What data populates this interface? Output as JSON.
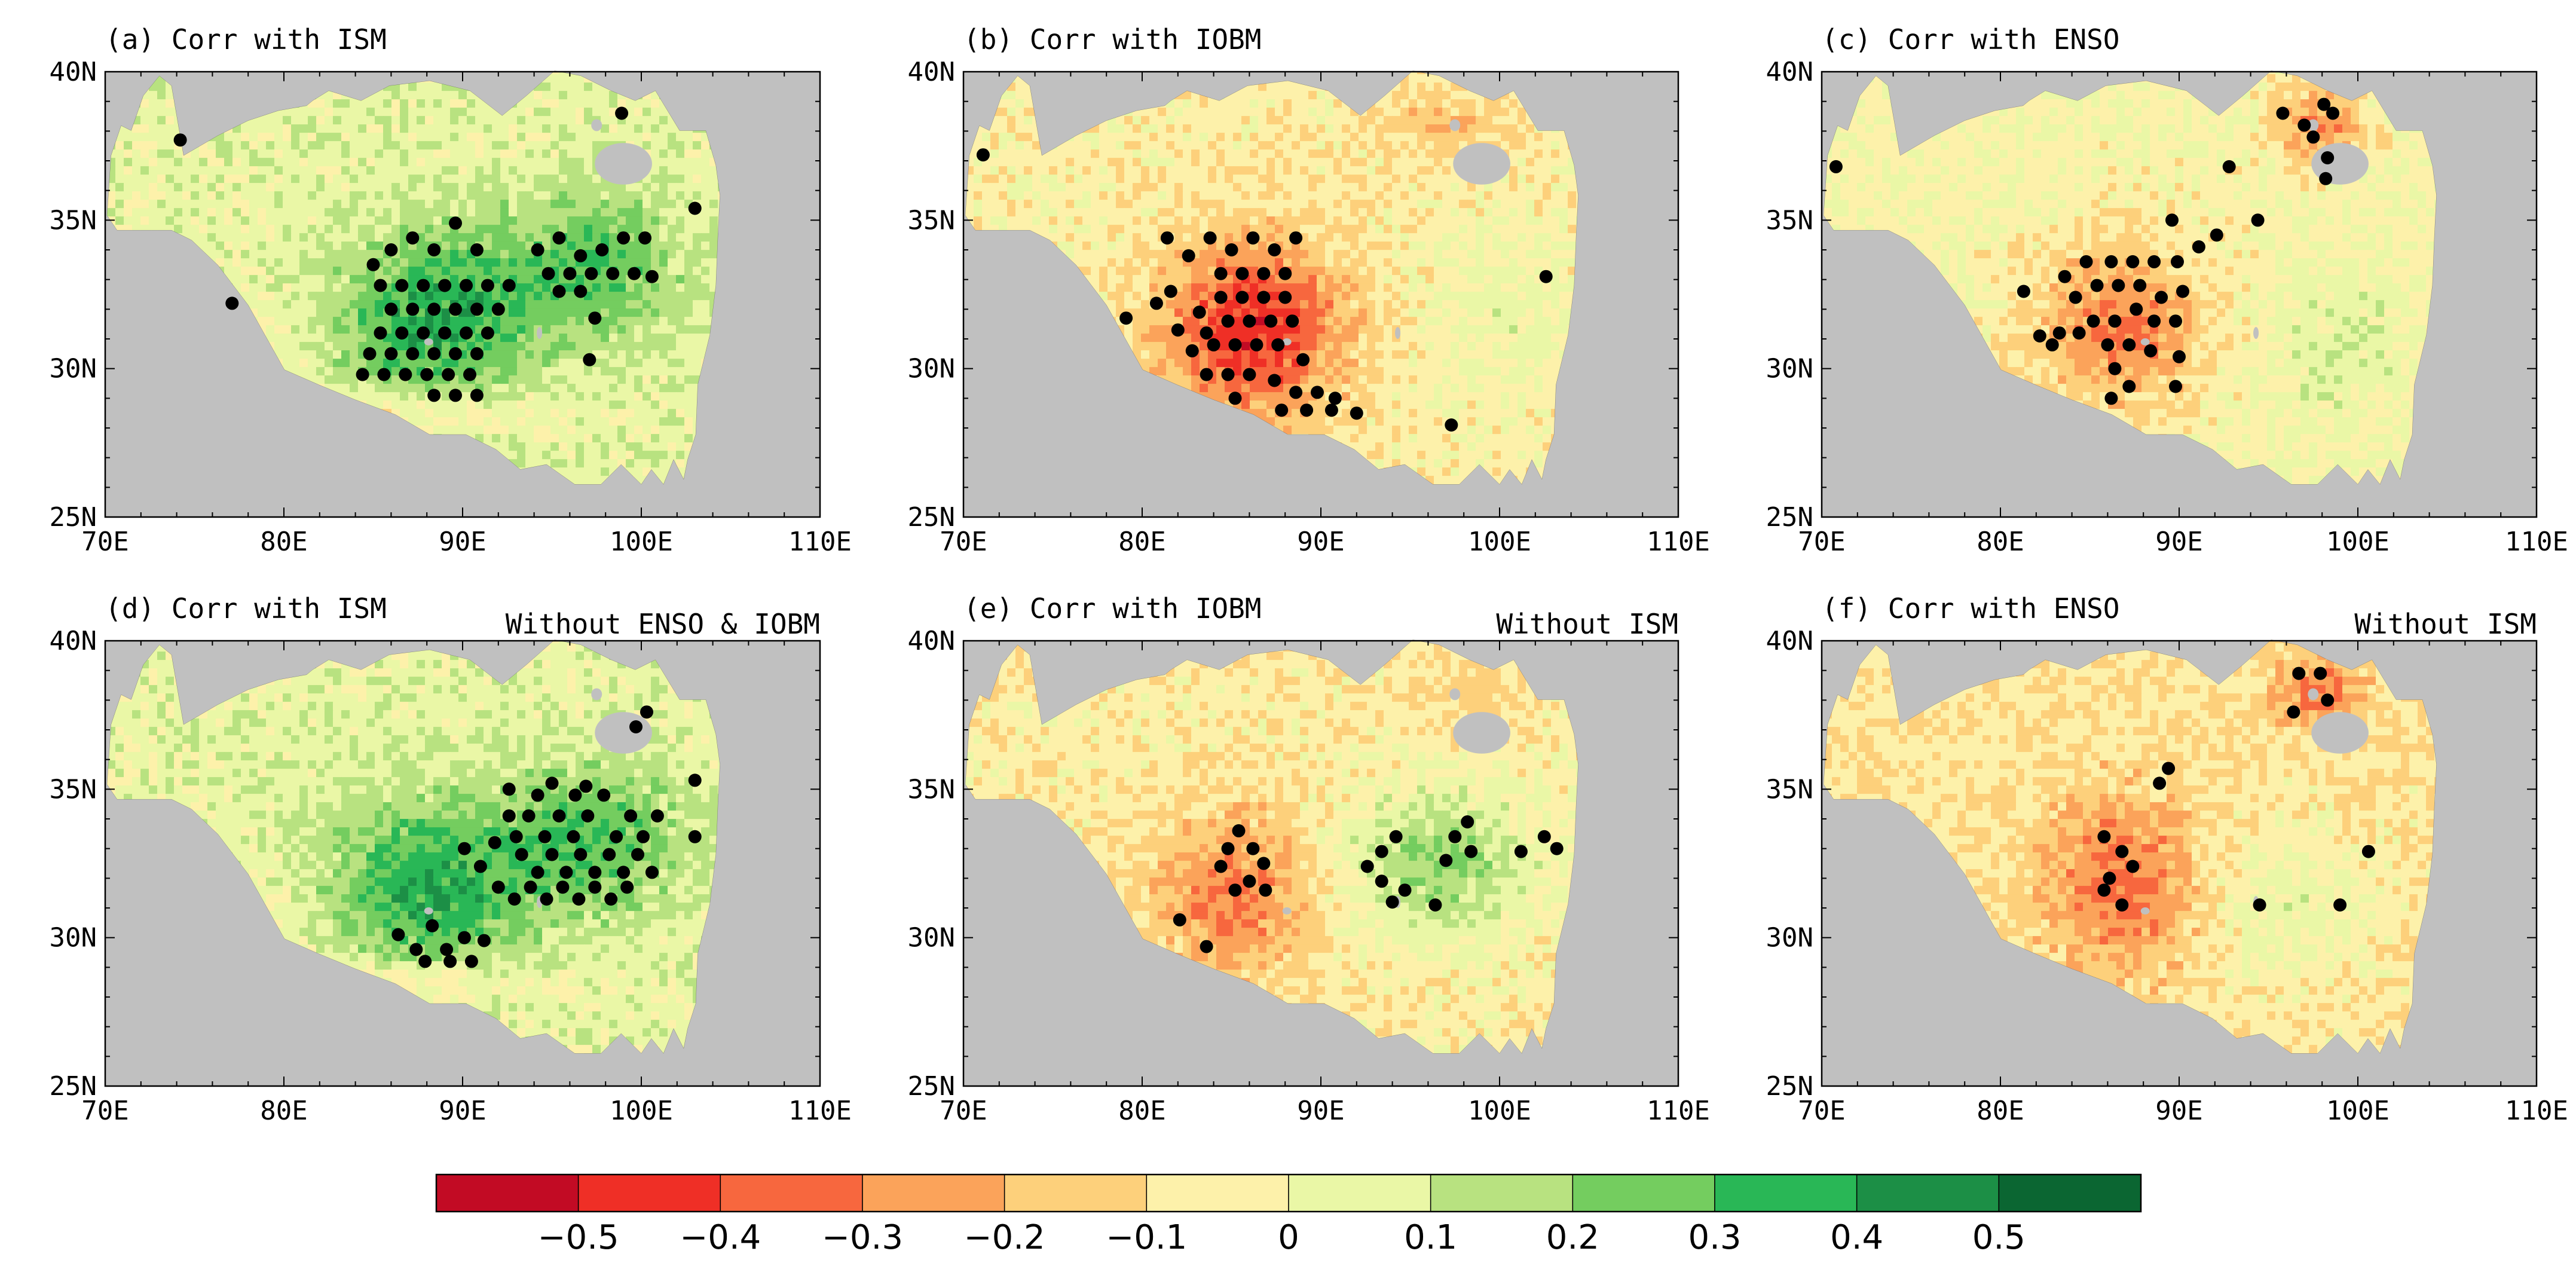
{
  "chart_data": {
    "type": "map",
    "description_x_axis": "longitude",
    "description_y_axis": "latitude",
    "x_range": [
      70,
      110
    ],
    "y_range": [
      25,
      40
    ],
    "x_ticks": [
      "70E",
      "80E",
      "90E",
      "100E",
      "110E"
    ],
    "y_ticks": [
      "40N",
      "35N",
      "30N",
      "25N"
    ],
    "panels": [
      {
        "id": "a",
        "title": "(a) Corr with ISM",
        "subtitle": "",
        "pattern": "ism",
        "dots": [
          [
            74.2,
            37.7
          ],
          [
            77.1,
            32.2
          ],
          [
            85,
            33.5
          ],
          [
            86,
            34
          ],
          [
            87.2,
            34.4
          ],
          [
            88.4,
            34
          ],
          [
            89.6,
            34.9
          ],
          [
            90.8,
            34
          ],
          [
            85.4,
            32.8
          ],
          [
            86.6,
            32.8
          ],
          [
            87.8,
            32.8
          ],
          [
            89,
            32.8
          ],
          [
            90.2,
            32.8
          ],
          [
            91.4,
            32.8
          ],
          [
            92.6,
            32.8
          ],
          [
            86,
            32
          ],
          [
            87.2,
            32
          ],
          [
            88.4,
            32
          ],
          [
            89.6,
            32
          ],
          [
            90.8,
            32
          ],
          [
            92,
            32
          ],
          [
            85.4,
            31.2
          ],
          [
            86.6,
            31.2
          ],
          [
            87.8,
            31.2
          ],
          [
            89,
            31.2
          ],
          [
            90.2,
            31.2
          ],
          [
            91.4,
            31.2
          ],
          [
            84.8,
            30.5
          ],
          [
            86,
            30.5
          ],
          [
            87.2,
            30.5
          ],
          [
            88.4,
            30.5
          ],
          [
            89.6,
            30.5
          ],
          [
            90.8,
            30.5
          ],
          [
            84.4,
            29.8
          ],
          [
            85.6,
            29.8
          ],
          [
            86.8,
            29.8
          ],
          [
            88,
            29.8
          ],
          [
            89.2,
            29.8
          ],
          [
            90.4,
            29.8
          ],
          [
            88.4,
            29.1
          ],
          [
            89.6,
            29.1
          ],
          [
            90.8,
            29.1
          ],
          [
            94.2,
            34
          ],
          [
            95.4,
            34.4
          ],
          [
            96.6,
            33.8
          ],
          [
            97.8,
            34
          ],
          [
            99,
            34.4
          ],
          [
            100.2,
            34.4
          ],
          [
            94.8,
            33.2
          ],
          [
            96,
            33.2
          ],
          [
            97.2,
            33.2
          ],
          [
            98.4,
            33.2
          ],
          [
            99.6,
            33.2
          ],
          [
            100.6,
            33.1
          ],
          [
            95.4,
            32.6
          ],
          [
            96.6,
            32.6
          ],
          [
            97.4,
            31.7
          ],
          [
            97.1,
            30.3
          ],
          [
            98.9,
            38.6
          ],
          [
            103,
            35.4
          ]
        ]
      },
      {
        "id": "b",
        "title": "(b) Corr with IOBM",
        "subtitle": "",
        "pattern": "iobm",
        "dots": [
          [
            71.1,
            37.2
          ],
          [
            79.1,
            31.7
          ],
          [
            81.4,
            34.4
          ],
          [
            80.8,
            32.2
          ],
          [
            81.6,
            32.6
          ],
          [
            82.6,
            33.8
          ],
          [
            83.8,
            34.4
          ],
          [
            85,
            34
          ],
          [
            86.2,
            34.4
          ],
          [
            87.4,
            34
          ],
          [
            88.6,
            34.4
          ],
          [
            84.4,
            33.2
          ],
          [
            85.6,
            33.2
          ],
          [
            86.8,
            33.2
          ],
          [
            88,
            33.2
          ],
          [
            82,
            31.3
          ],
          [
            83.2,
            31.9
          ],
          [
            84.4,
            32.4
          ],
          [
            85.6,
            32.4
          ],
          [
            86.8,
            32.4
          ],
          [
            88,
            32.4
          ],
          [
            83.6,
            31.2
          ],
          [
            84.8,
            31.6
          ],
          [
            86,
            31.6
          ],
          [
            87.2,
            31.6
          ],
          [
            88.4,
            31.6
          ],
          [
            82.8,
            30.6
          ],
          [
            84,
            30.8
          ],
          [
            85.2,
            30.8
          ],
          [
            86.4,
            30.8
          ],
          [
            87.6,
            30.8
          ],
          [
            89,
            30.3
          ],
          [
            83.6,
            29.8
          ],
          [
            84.8,
            29.8
          ],
          [
            86,
            29.8
          ],
          [
            87.4,
            29.6
          ],
          [
            88.6,
            29.2
          ],
          [
            89.8,
            29.2
          ],
          [
            90.8,
            29
          ],
          [
            85.2,
            29
          ],
          [
            87.8,
            28.6
          ],
          [
            89.2,
            28.6
          ],
          [
            90.6,
            28.6
          ],
          [
            92,
            28.5
          ],
          [
            97.3,
            28.1
          ],
          [
            102.6,
            33.1
          ]
        ]
      },
      {
        "id": "c",
        "title": "(c) Corr with ENSO",
        "subtitle": "",
        "pattern": "enso",
        "dots": [
          [
            70.8,
            36.8
          ],
          [
            95.8,
            38.6
          ],
          [
            97,
            38.2
          ],
          [
            98.1,
            38.9
          ],
          [
            98.6,
            38.6
          ],
          [
            97.5,
            37.8
          ],
          [
            98.3,
            37.1
          ],
          [
            98.2,
            36.4
          ],
          [
            92.8,
            36.8
          ],
          [
            94.4,
            35
          ],
          [
            92.1,
            34.5
          ],
          [
            89.6,
            35
          ],
          [
            91.1,
            34.1
          ],
          [
            88.6,
            33.6
          ],
          [
            89.9,
            33.6
          ],
          [
            86.2,
            33.6
          ],
          [
            87.4,
            33.6
          ],
          [
            84.8,
            33.6
          ],
          [
            83.6,
            33.1
          ],
          [
            85.4,
            32.8
          ],
          [
            86.6,
            32.8
          ],
          [
            87.8,
            32.8
          ],
          [
            89,
            32.4
          ],
          [
            90.2,
            32.6
          ],
          [
            81.3,
            32.6
          ],
          [
            84.2,
            32.4
          ],
          [
            85.2,
            31.6
          ],
          [
            86.4,
            31.6
          ],
          [
            87.6,
            32
          ],
          [
            88.6,
            31.6
          ],
          [
            89.8,
            31.6
          ],
          [
            82.2,
            31.1
          ],
          [
            83.3,
            31.2
          ],
          [
            84.4,
            31.2
          ],
          [
            86,
            30.8
          ],
          [
            87.2,
            30.8
          ],
          [
            88.4,
            30.6
          ],
          [
            82.9,
            30.8
          ],
          [
            86.4,
            30
          ],
          [
            87.2,
            29.4
          ],
          [
            86.2,
            29
          ],
          [
            89.8,
            29.4
          ],
          [
            90,
            30.4
          ]
        ]
      },
      {
        "id": "d",
        "title": "(d) Corr with ISM",
        "subtitle": "Without ENSO & IOBM",
        "pattern": "ism",
        "dots": [
          [
            86.4,
            30.1
          ],
          [
            87.4,
            29.6
          ],
          [
            88.3,
            30.4
          ],
          [
            89.1,
            29.6
          ],
          [
            90.1,
            30
          ],
          [
            87.9,
            29.2
          ],
          [
            89.3,
            29.2
          ],
          [
            90.5,
            29.2
          ],
          [
            91.2,
            29.9
          ],
          [
            90.1,
            33
          ],
          [
            91,
            32.4
          ],
          [
            91.8,
            33.2
          ],
          [
            92.6,
            34.1
          ],
          [
            93,
            33.4
          ],
          [
            93.7,
            34.1
          ],
          [
            94.6,
            33.4
          ],
          [
            95.4,
            34.1
          ],
          [
            96.3,
            34.8
          ],
          [
            96.2,
            33.4
          ],
          [
            97,
            34.1
          ],
          [
            97.9,
            34.8
          ],
          [
            98.6,
            33.4
          ],
          [
            99.4,
            34.1
          ],
          [
            100.1,
            33.4
          ],
          [
            100.9,
            34.1
          ],
          [
            93.3,
            32.8
          ],
          [
            94.2,
            32.2
          ],
          [
            95,
            32.8
          ],
          [
            95.8,
            32.2
          ],
          [
            96.6,
            32.8
          ],
          [
            97.4,
            32.2
          ],
          [
            98.2,
            32.8
          ],
          [
            99,
            32.2
          ],
          [
            99.8,
            32.8
          ],
          [
            100.6,
            32.2
          ],
          [
            92,
            31.7
          ],
          [
            92.9,
            31.3
          ],
          [
            93.8,
            31.7
          ],
          [
            94.7,
            31.3
          ],
          [
            95.6,
            31.7
          ],
          [
            96.5,
            31.3
          ],
          [
            97.4,
            31.7
          ],
          [
            98.3,
            31.3
          ],
          [
            99.2,
            31.7
          ],
          [
            99.7,
            37.1
          ],
          [
            100.3,
            37.6
          ],
          [
            103,
            35.3
          ],
          [
            103,
            33.4
          ],
          [
            94.2,
            34.8
          ],
          [
            95,
            35.2
          ],
          [
            92.6,
            35
          ],
          [
            96.9,
            35.1
          ]
        ]
      },
      {
        "id": "e",
        "title": "(e) Corr with IOBM",
        "subtitle": "Without ISM",
        "pattern": "iobm2",
        "dots": [
          [
            84.4,
            32.4
          ],
          [
            84.8,
            33
          ],
          [
            85.4,
            33.6
          ],
          [
            86.2,
            33
          ],
          [
            86.8,
            32.5
          ],
          [
            85.2,
            31.6
          ],
          [
            86,
            31.9
          ],
          [
            86.9,
            31.6
          ],
          [
            82.1,
            30.6
          ],
          [
            83.6,
            29.7
          ],
          [
            92.6,
            32.4
          ],
          [
            93.4,
            32.9
          ],
          [
            94.2,
            33.4
          ],
          [
            93.4,
            31.9
          ],
          [
            94,
            31.2
          ],
          [
            94.7,
            31.6
          ],
          [
            96.4,
            31.1
          ],
          [
            97.5,
            33.4
          ],
          [
            98.2,
            33.9
          ],
          [
            98.4,
            32.9
          ],
          [
            101.2,
            32.9
          ],
          [
            102.5,
            33.4
          ],
          [
            103.2,
            33
          ],
          [
            97,
            32.6
          ]
        ]
      },
      {
        "id": "f",
        "title": "(f) Corr with ENSO",
        "subtitle": "Without ISM",
        "pattern": "enso2",
        "dots": [
          [
            96.4,
            37.6
          ],
          [
            96.7,
            38.9
          ],
          [
            97.9,
            38.9
          ],
          [
            98.3,
            38
          ],
          [
            89.4,
            35.7
          ],
          [
            88.9,
            35.2
          ],
          [
            85.8,
            33.4
          ],
          [
            86.8,
            32.9
          ],
          [
            87.4,
            32.4
          ],
          [
            86.1,
            32
          ],
          [
            85.8,
            31.6
          ],
          [
            86.8,
            31.1
          ],
          [
            94.5,
            31.1
          ],
          [
            99,
            31.1
          ],
          [
            100.6,
            32.9
          ]
        ]
      }
    ],
    "colorbar": {
      "bins": [
        "< -0.5",
        "-0.5 to -0.4",
        "-0.4 to -0.3",
        "-0.3 to -0.2",
        "-0.2 to -0.1",
        "-0.1 to 0",
        "0 to 0.1",
        "0.1 to 0.2",
        "0.2 to 0.3",
        "0.3 to 0.4",
        "0.4 to 0.5",
        "> 0.5"
      ],
      "colors": [
        "#c20b24",
        "#ef2f26",
        "#f7673e",
        "#fba35a",
        "#fdd07b",
        "#fdf1aa",
        "#eaf7a6",
        "#b8e280",
        "#74cd5f",
        "#29b756",
        "#1c8f46",
        "#0b6632"
      ],
      "labels": [
        "-0.5",
        "-0.4",
        "-0.3",
        "-0.2",
        "-0.1",
        "0",
        "0.1",
        "0.2",
        "0.3",
        "0.4",
        "0.5"
      ]
    }
  },
  "colors": {
    "ocean_background": "#c0c0c0",
    "dot": "#000000",
    "coast": "#555555"
  }
}
